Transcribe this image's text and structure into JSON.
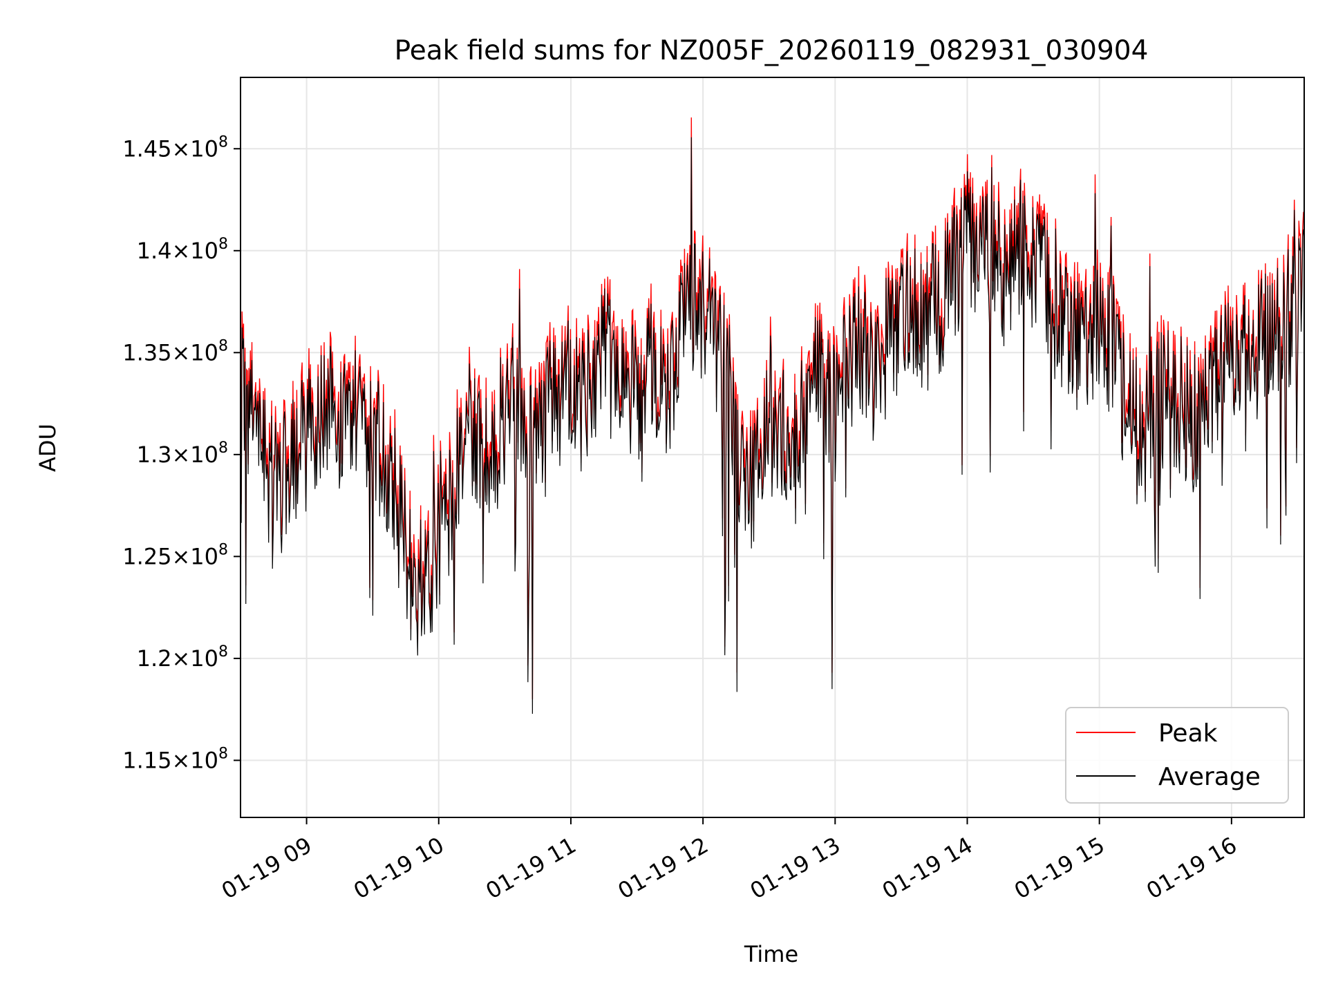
{
  "chart_data": {
    "type": "line",
    "title": "Peak field sums for NZ005F_20260119_082931_030904",
    "xlabel": "Time",
    "ylabel": "ADU",
    "x_unit": "hours since 01-19 00:00",
    "xlim": [
      8.5,
      16.55
    ],
    "ylim": [
      112200000,
      148500000
    ],
    "grid": true,
    "legend_position": "lower right",
    "x_ticks": [
      {
        "value": 9,
        "label": "01-19 09"
      },
      {
        "value": 10,
        "label": "01-19 10"
      },
      {
        "value": 11,
        "label": "01-19 11"
      },
      {
        "value": 12,
        "label": "01-19 12"
      },
      {
        "value": 13,
        "label": "01-19 13"
      },
      {
        "value": 14,
        "label": "01-19 14"
      },
      {
        "value": 15,
        "label": "01-19 15"
      },
      {
        "value": 16,
        "label": "01-19 16"
      }
    ],
    "y_ticks": [
      {
        "value": 115000000,
        "mantissa": "1.15",
        "base": "10",
        "exp": "8"
      },
      {
        "value": 120000000,
        "mantissa": "1.2",
        "base": "10",
        "exp": "8"
      },
      {
        "value": 125000000,
        "mantissa": "1.25",
        "base": "10",
        "exp": "8"
      },
      {
        "value": 130000000,
        "mantissa": "1.3",
        "base": "10",
        "exp": "8"
      },
      {
        "value": 135000000,
        "mantissa": "1.35",
        "base": "10",
        "exp": "8"
      },
      {
        "value": 140000000,
        "mantissa": "1.4",
        "base": "10",
        "exp": "8"
      },
      {
        "value": 145000000,
        "mantissa": "1.45",
        "base": "10",
        "exp": "8"
      }
    ],
    "series": [
      {
        "name": "Average",
        "color": "#000000",
        "x": [
          8.5,
          8.6,
          8.7,
          8.8,
          8.9,
          9.0,
          9.1,
          9.2,
          9.3,
          9.4,
          9.5,
          9.6,
          9.7,
          9.8,
          9.9,
          10.0,
          10.1,
          10.2,
          10.3,
          10.4,
          10.5,
          10.6,
          10.7,
          10.8,
          10.9,
          11.0,
          11.1,
          11.2,
          11.3,
          11.4,
          11.5,
          11.6,
          11.7,
          11.8,
          11.9,
          12.0,
          12.1,
          12.2,
          12.3,
          12.4,
          12.5,
          12.6,
          12.7,
          12.8,
          12.9,
          13.0,
          13.1,
          13.2,
          13.3,
          13.4,
          13.5,
          13.6,
          13.7,
          13.8,
          13.9,
          14.0,
          14.1,
          14.2,
          14.3,
          14.4,
          14.5,
          14.6,
          14.7,
          14.8,
          14.9,
          15.0,
          15.1,
          15.2,
          15.3,
          15.4,
          15.5,
          15.6,
          15.7,
          15.8,
          15.9,
          16.0,
          16.1,
          16.2,
          16.3,
          16.4,
          16.5,
          16.55
        ],
        "y": [
          133000000,
          131000000,
          129000000,
          128500000,
          129500000,
          130500000,
          132000000,
          132500000,
          131000000,
          133000000,
          130500000,
          130000000,
          127000000,
          124000000,
          123000000,
          125500000,
          128000000,
          132000000,
          130000000,
          129500000,
          131500000,
          133000000,
          131000000,
          132000000,
          132500000,
          133500000,
          132000000,
          134500000,
          135000000,
          133500000,
          133000000,
          134000000,
          133000000,
          134500000,
          137500000,
          137000000,
          135500000,
          133000000,
          129000000,
          128500000,
          132500000,
          131000000,
          130000000,
          133500000,
          134000000,
          132000000,
          134000000,
          135000000,
          134000000,
          135500000,
          136500000,
          137000000,
          136500000,
          137500000,
          139000000,
          140500000,
          141000000,
          139500000,
          138000000,
          140500000,
          139000000,
          138000000,
          136500000,
          135000000,
          135500000,
          136000000,
          135000000,
          132500000,
          130500000,
          131500000,
          133000000,
          132500000,
          131500000,
          132500000,
          134000000,
          135500000,
          134500000,
          135000000,
          136000000,
          136500000,
          137000000,
          138500000
        ]
      },
      {
        "name": "Peak",
        "color": "#ff0000",
        "x": [
          8.5,
          8.6,
          8.7,
          8.8,
          8.9,
          9.0,
          9.1,
          9.2,
          9.3,
          9.4,
          9.5,
          9.6,
          9.7,
          9.8,
          9.9,
          10.0,
          10.1,
          10.2,
          10.3,
          10.4,
          10.5,
          10.6,
          10.7,
          10.8,
          10.9,
          11.0,
          11.1,
          11.2,
          11.3,
          11.4,
          11.5,
          11.6,
          11.7,
          11.8,
          11.9,
          12.0,
          12.1,
          12.2,
          12.3,
          12.4,
          12.5,
          12.6,
          12.7,
          12.8,
          12.9,
          13.0,
          13.1,
          13.2,
          13.3,
          13.4,
          13.5,
          13.6,
          13.7,
          13.8,
          13.9,
          14.0,
          14.1,
          14.2,
          14.3,
          14.4,
          14.5,
          14.6,
          14.7,
          14.8,
          14.9,
          15.0,
          15.1,
          15.2,
          15.3,
          15.4,
          15.5,
          15.6,
          15.7,
          15.8,
          15.9,
          16.0,
          16.1,
          16.2,
          16.3,
          16.4,
          16.5,
          16.55
        ],
        "y": [
          133400000,
          131400000,
          129400000,
          128900000,
          129900000,
          130900000,
          132400000,
          132900000,
          131400000,
          133400000,
          130900000,
          130400000,
          127400000,
          124400000,
          123400000,
          125900000,
          128400000,
          132400000,
          130400000,
          129900000,
          131900000,
          133400000,
          131400000,
          132400000,
          132900000,
          133900000,
          132400000,
          134900000,
          135400000,
          133900000,
          133400000,
          134400000,
          133400000,
          134900000,
          137900000,
          137400000,
          135900000,
          133400000,
          129400000,
          128900000,
          132900000,
          131400000,
          130400000,
          133900000,
          134400000,
          132400000,
          134400000,
          135400000,
          134400000,
          135900000,
          136900000,
          137400000,
          136900000,
          137900000,
          139400000,
          140900000,
          141400000,
          139900000,
          138400000,
          140900000,
          139400000,
          138400000,
          136900000,
          135400000,
          135900000,
          136400000,
          135400000,
          132900000,
          130900000,
          131900000,
          133400000,
          132900000,
          131900000,
          132900000,
          134400000,
          135900000,
          134900000,
          135400000,
          136400000,
          136900000,
          137400000,
          138900000
        ]
      }
    ],
    "noise": {
      "seed": 42,
      "samples": 1400,
      "amplitude": 3500000,
      "spike_probability": 0.05,
      "spike_amplitude": 12000000
    },
    "legend": [
      {
        "label": "Peak",
        "color": "#ff0000"
      },
      {
        "label": "Average",
        "color": "#000000"
      }
    ]
  }
}
